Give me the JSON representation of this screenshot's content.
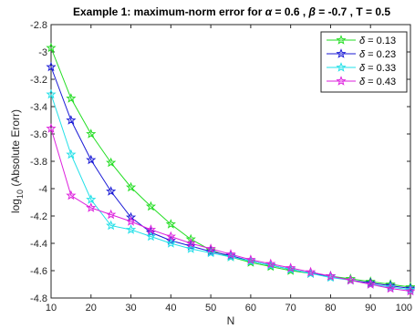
{
  "chart_data": {
    "type": "line",
    "title_prefix": "Example 1: maximum-norm error for ",
    "title_alpha_sym": "α",
    "title_alpha_val": " = 0.6 , ",
    "title_beta_sym": "β",
    "title_beta_val": " = -0.7 , T = 0.5",
    "xlabel": "N",
    "ylabel_prefix": "log",
    "ylabel_sub": "10",
    "ylabel_suffix": " (Absolute Erorr)",
    "xlim": [
      10,
      100
    ],
    "ylim": [
      -4.8,
      -2.8
    ],
    "xticks": [
      "10",
      "20",
      "30",
      "40",
      "50",
      "60",
      "70",
      "80",
      "90",
      "100"
    ],
    "yticks": [
      "-2.8",
      "-3",
      "-3.2",
      "-3.4",
      "-3.6",
      "-3.8",
      "-4",
      "-4.2",
      "-4.4",
      "-4.6",
      "-4.8"
    ],
    "grid": false,
    "legend_position": "top-right",
    "legend_symbol": "δ",
    "x": [
      10,
      15,
      20,
      25,
      30,
      35,
      40,
      45,
      50,
      55,
      60,
      65,
      70,
      75,
      80,
      85,
      90,
      95,
      100
    ],
    "series": [
      {
        "name": " = 0.13",
        "color": "#22dd22",
        "values": [
          -2.97,
          -3.34,
          -3.6,
          -3.81,
          -3.99,
          -4.13,
          -4.26,
          -4.37,
          -4.45,
          -4.5,
          -4.54,
          -4.57,
          -4.6,
          -4.62,
          -4.64,
          -4.66,
          -4.68,
          -4.7,
          -4.72
        ]
      },
      {
        "name": " = 0.23",
        "color": "#1a1ad6",
        "values": [
          -3.11,
          -3.5,
          -3.79,
          -4.02,
          -4.21,
          -4.32,
          -4.38,
          -4.42,
          -4.46,
          -4.49,
          -4.53,
          -4.56,
          -4.59,
          -4.62,
          -4.64,
          -4.67,
          -4.69,
          -4.71,
          -4.73
        ]
      },
      {
        "name": " = 0.33",
        "color": "#22e0e8",
        "values": [
          -3.31,
          -3.75,
          -4.08,
          -4.27,
          -4.3,
          -4.35,
          -4.4,
          -4.44,
          -4.47,
          -4.5,
          -4.53,
          -4.56,
          -4.59,
          -4.62,
          -4.65,
          -4.67,
          -4.7,
          -4.72,
          -4.74
        ]
      },
      {
        "name": " = 0.43",
        "color": "#dd22dd",
        "values": [
          -3.56,
          -4.05,
          -4.14,
          -4.19,
          -4.24,
          -4.3,
          -4.35,
          -4.4,
          -4.44,
          -4.48,
          -4.52,
          -4.55,
          -4.58,
          -4.61,
          -4.64,
          -4.67,
          -4.7,
          -4.73,
          -4.75
        ]
      }
    ]
  }
}
